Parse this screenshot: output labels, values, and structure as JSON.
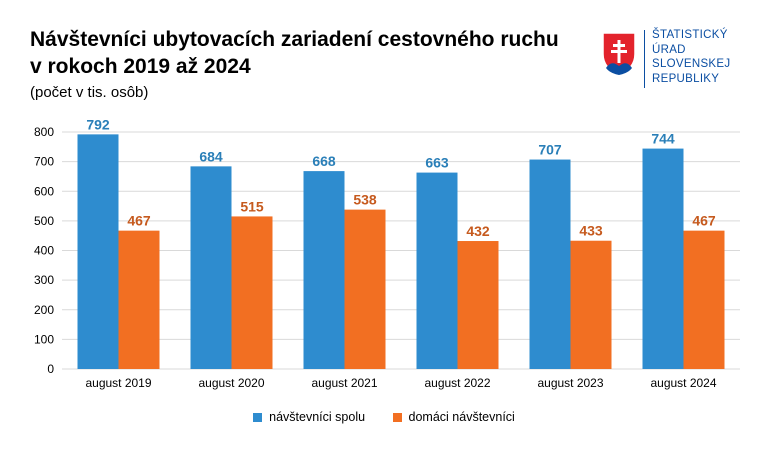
{
  "header": {
    "title": "Návštevníci ubytovacích zariadení cestovného ruchu v rokoch 2019 až 2024",
    "subtitle": "(počet v tis. osôb)"
  },
  "logo": {
    "icon": "slovak-coat-of-arms-icon",
    "lines": [
      "ŠTATISTICKÝ",
      "ÚRAD",
      "SLOVENSKEJ",
      "REPUBLIKY"
    ]
  },
  "colors": {
    "series_a": "#2e8ccf",
    "series_b": "#f26f22",
    "label_a": "#2a7fb8",
    "label_b": "#c65a1e",
    "grid": "#d9d9d9"
  },
  "chart_data": {
    "type": "bar",
    "categories": [
      "august 2019",
      "august 2020",
      "august 2021",
      "august 2022",
      "august 2023",
      "august 2024"
    ],
    "series": [
      {
        "name": "návštevníci spolu",
        "values": [
          792,
          684,
          668,
          663,
          707,
          744
        ]
      },
      {
        "name": "domáci návštevníci",
        "values": [
          467,
          515,
          538,
          432,
          433,
          467
        ]
      }
    ],
    "ylim": [
      0,
      800
    ],
    "yticks": [
      0,
      100,
      200,
      300,
      400,
      500,
      600,
      700,
      800
    ],
    "grid": true,
    "legend": "bottom"
  }
}
